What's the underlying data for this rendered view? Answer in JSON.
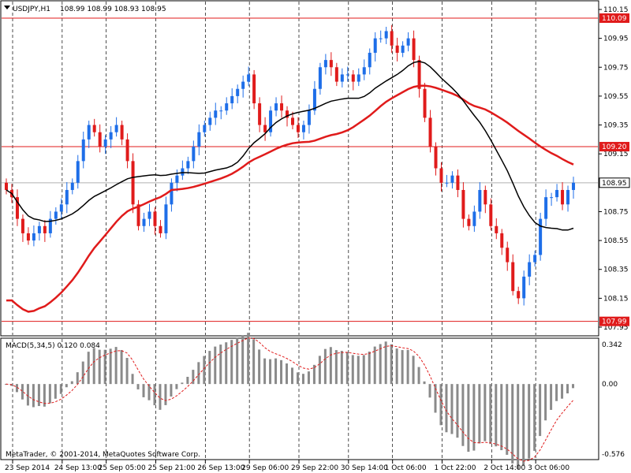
{
  "header": {
    "symbol": "USDJPY,H1",
    "ohlc": "108.99 108.99 108.93 108.95"
  },
  "indicator": {
    "label": "MACD(5,34,5) 0.120 0.084",
    "scale": [
      "0.342",
      "0.00",
      "-0.576"
    ]
  },
  "footer": {
    "copyright": "MetaTrader, © 2001-2014, MetaQuotes Software Corp."
  },
  "colors": {
    "up": "#1e6ee8",
    "down": "#e01b1b",
    "ma_slow": "#e01b1b",
    "ma_fast": "#000000",
    "hist": "#8a8a8a",
    "signal": "#e01b1b",
    "grid": "#000000",
    "level_line": "#e01b1b",
    "current_line": "#b0b0b0"
  },
  "chart_data": [
    {
      "type": "candlestick",
      "title": "USDJPY,H1",
      "ylim": [
        107.95,
        110.15
      ],
      "price_ticks": [
        "110.15",
        "109.95",
        "109.75",
        "109.55",
        "109.35",
        "109.15",
        "108.95",
        "108.75",
        "108.55",
        "108.35",
        "108.15",
        "107.95"
      ],
      "x_labels": [
        "23 Sep 2014",
        "24 Sep 13:00",
        "25 Sep 05:00",
        "25 Sep 21:00",
        "26 Sep 13:00",
        "29 Sep 06:00",
        "29 Sep 22:00",
        "30 Sep 14:00",
        "1 Oct 06:00",
        "1 Oct 22:00",
        "2 Oct 14:00",
        "3 Oct 06:00"
      ],
      "price_tags": [
        {
          "value": "110.09",
          "kind": "level"
        },
        {
          "value": "109.20",
          "kind": "level"
        },
        {
          "value": "108.95",
          "kind": "current"
        },
        {
          "value": "107.99",
          "kind": "level"
        }
      ],
      "close": [
        108.9,
        108.85,
        108.7,
        108.6,
        108.55,
        108.6,
        108.65,
        108.6,
        108.7,
        108.75,
        108.8,
        108.9,
        108.95,
        109.1,
        109.25,
        109.35,
        109.3,
        109.2,
        109.25,
        109.3,
        109.35,
        109.25,
        109.1,
        108.8,
        108.65,
        108.7,
        108.75,
        108.65,
        108.6,
        108.8,
        108.95,
        109.0,
        109.05,
        109.1,
        109.2,
        109.3,
        109.35,
        109.4,
        109.45,
        109.45,
        109.5,
        109.55,
        109.6,
        109.65,
        109.7,
        109.5,
        109.35,
        109.3,
        109.45,
        109.5,
        109.45,
        109.4,
        109.35,
        109.3,
        109.35,
        109.45,
        109.6,
        109.75,
        109.8,
        109.75,
        109.65,
        109.7,
        109.7,
        109.65,
        109.7,
        109.75,
        109.85,
        109.95,
        109.95,
        110.0,
        109.9,
        109.85,
        109.9,
        109.95,
        109.8,
        109.6,
        109.4,
        109.2,
        109.05,
        108.95,
        108.95,
        109.0,
        108.9,
        108.7,
        108.65,
        108.75,
        108.9,
        108.8,
        108.65,
        108.6,
        108.5,
        108.4,
        108.2,
        108.15,
        108.3,
        108.4,
        108.45,
        108.7,
        108.85,
        108.85,
        108.9,
        108.8,
        108.9,
        108.95
      ]
    },
    {
      "type": "bar",
      "title": "MACD(5,34,5)",
      "ylim": [
        -0.576,
        0.342
      ],
      "series": [
        {
          "name": "MACD",
          "values": [
            0.0
          ]
        },
        {
          "name": "Signal",
          "values": [
            0.0
          ]
        }
      ]
    }
  ]
}
